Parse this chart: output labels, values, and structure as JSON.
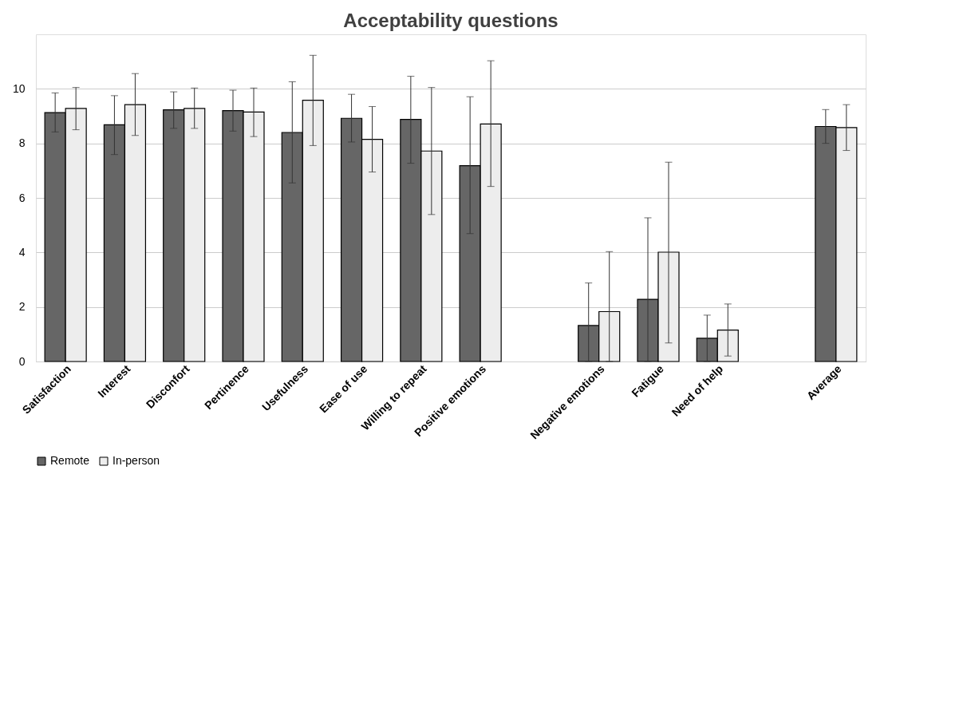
{
  "chart_data": {
    "type": "bar",
    "title": "Acceptability questions",
    "categories": [
      "Satisfaction",
      "Interest",
      "Disconfort",
      "Pertinence",
      "Usefulness",
      "Ease of use",
      "Willing to repeat",
      "Positive emotions",
      null,
      "Negative emotions",
      "Fatigue",
      "Need of help",
      null,
      "Average"
    ],
    "series": [
      {
        "name": "Remote",
        "color": "#666666",
        "values": [
          9.13,
          8.68,
          9.23,
          9.2,
          8.4,
          8.92,
          8.88,
          7.18,
          null,
          1.32,
          2.28,
          0.85,
          null,
          8.62
        ],
        "errors": [
          [
            8.42,
            9.85
          ],
          [
            7.59,
            9.75
          ],
          [
            8.55,
            9.89
          ],
          [
            8.45,
            9.95
          ],
          [
            6.55,
            10.26
          ],
          [
            8.05,
            9.8
          ],
          [
            7.27,
            10.46
          ],
          [
            4.69,
            9.71
          ],
          null,
          [
            0,
            2.88
          ],
          [
            0,
            5.27
          ],
          [
            0,
            1.7
          ],
          null,
          [
            8.0,
            9.24
          ]
        ]
      },
      {
        "name": "In-person",
        "color": "#ededed",
        "values": [
          9.28,
          9.42,
          9.28,
          9.15,
          9.58,
          8.15,
          7.72,
          8.71,
          null,
          1.83,
          4.01,
          1.15,
          null,
          8.58
        ],
        "errors": [
          [
            8.5,
            10.05
          ],
          [
            8.29,
            10.56
          ],
          [
            8.55,
            10.03
          ],
          [
            8.25,
            10.03
          ],
          [
            7.92,
            11.23
          ],
          [
            6.95,
            9.35
          ],
          [
            5.39,
            10.05
          ],
          [
            6.42,
            11.03
          ],
          null,
          [
            0,
            4.03
          ],
          [
            0.68,
            7.31
          ],
          [
            0.2,
            2.11
          ],
          null,
          [
            7.74,
            9.42
          ]
        ]
      }
    ],
    "ylim": [
      0,
      12
    ],
    "yticks": [
      0,
      2,
      4,
      6,
      8,
      10
    ],
    "grid": "y",
    "legend": "bottom"
  }
}
